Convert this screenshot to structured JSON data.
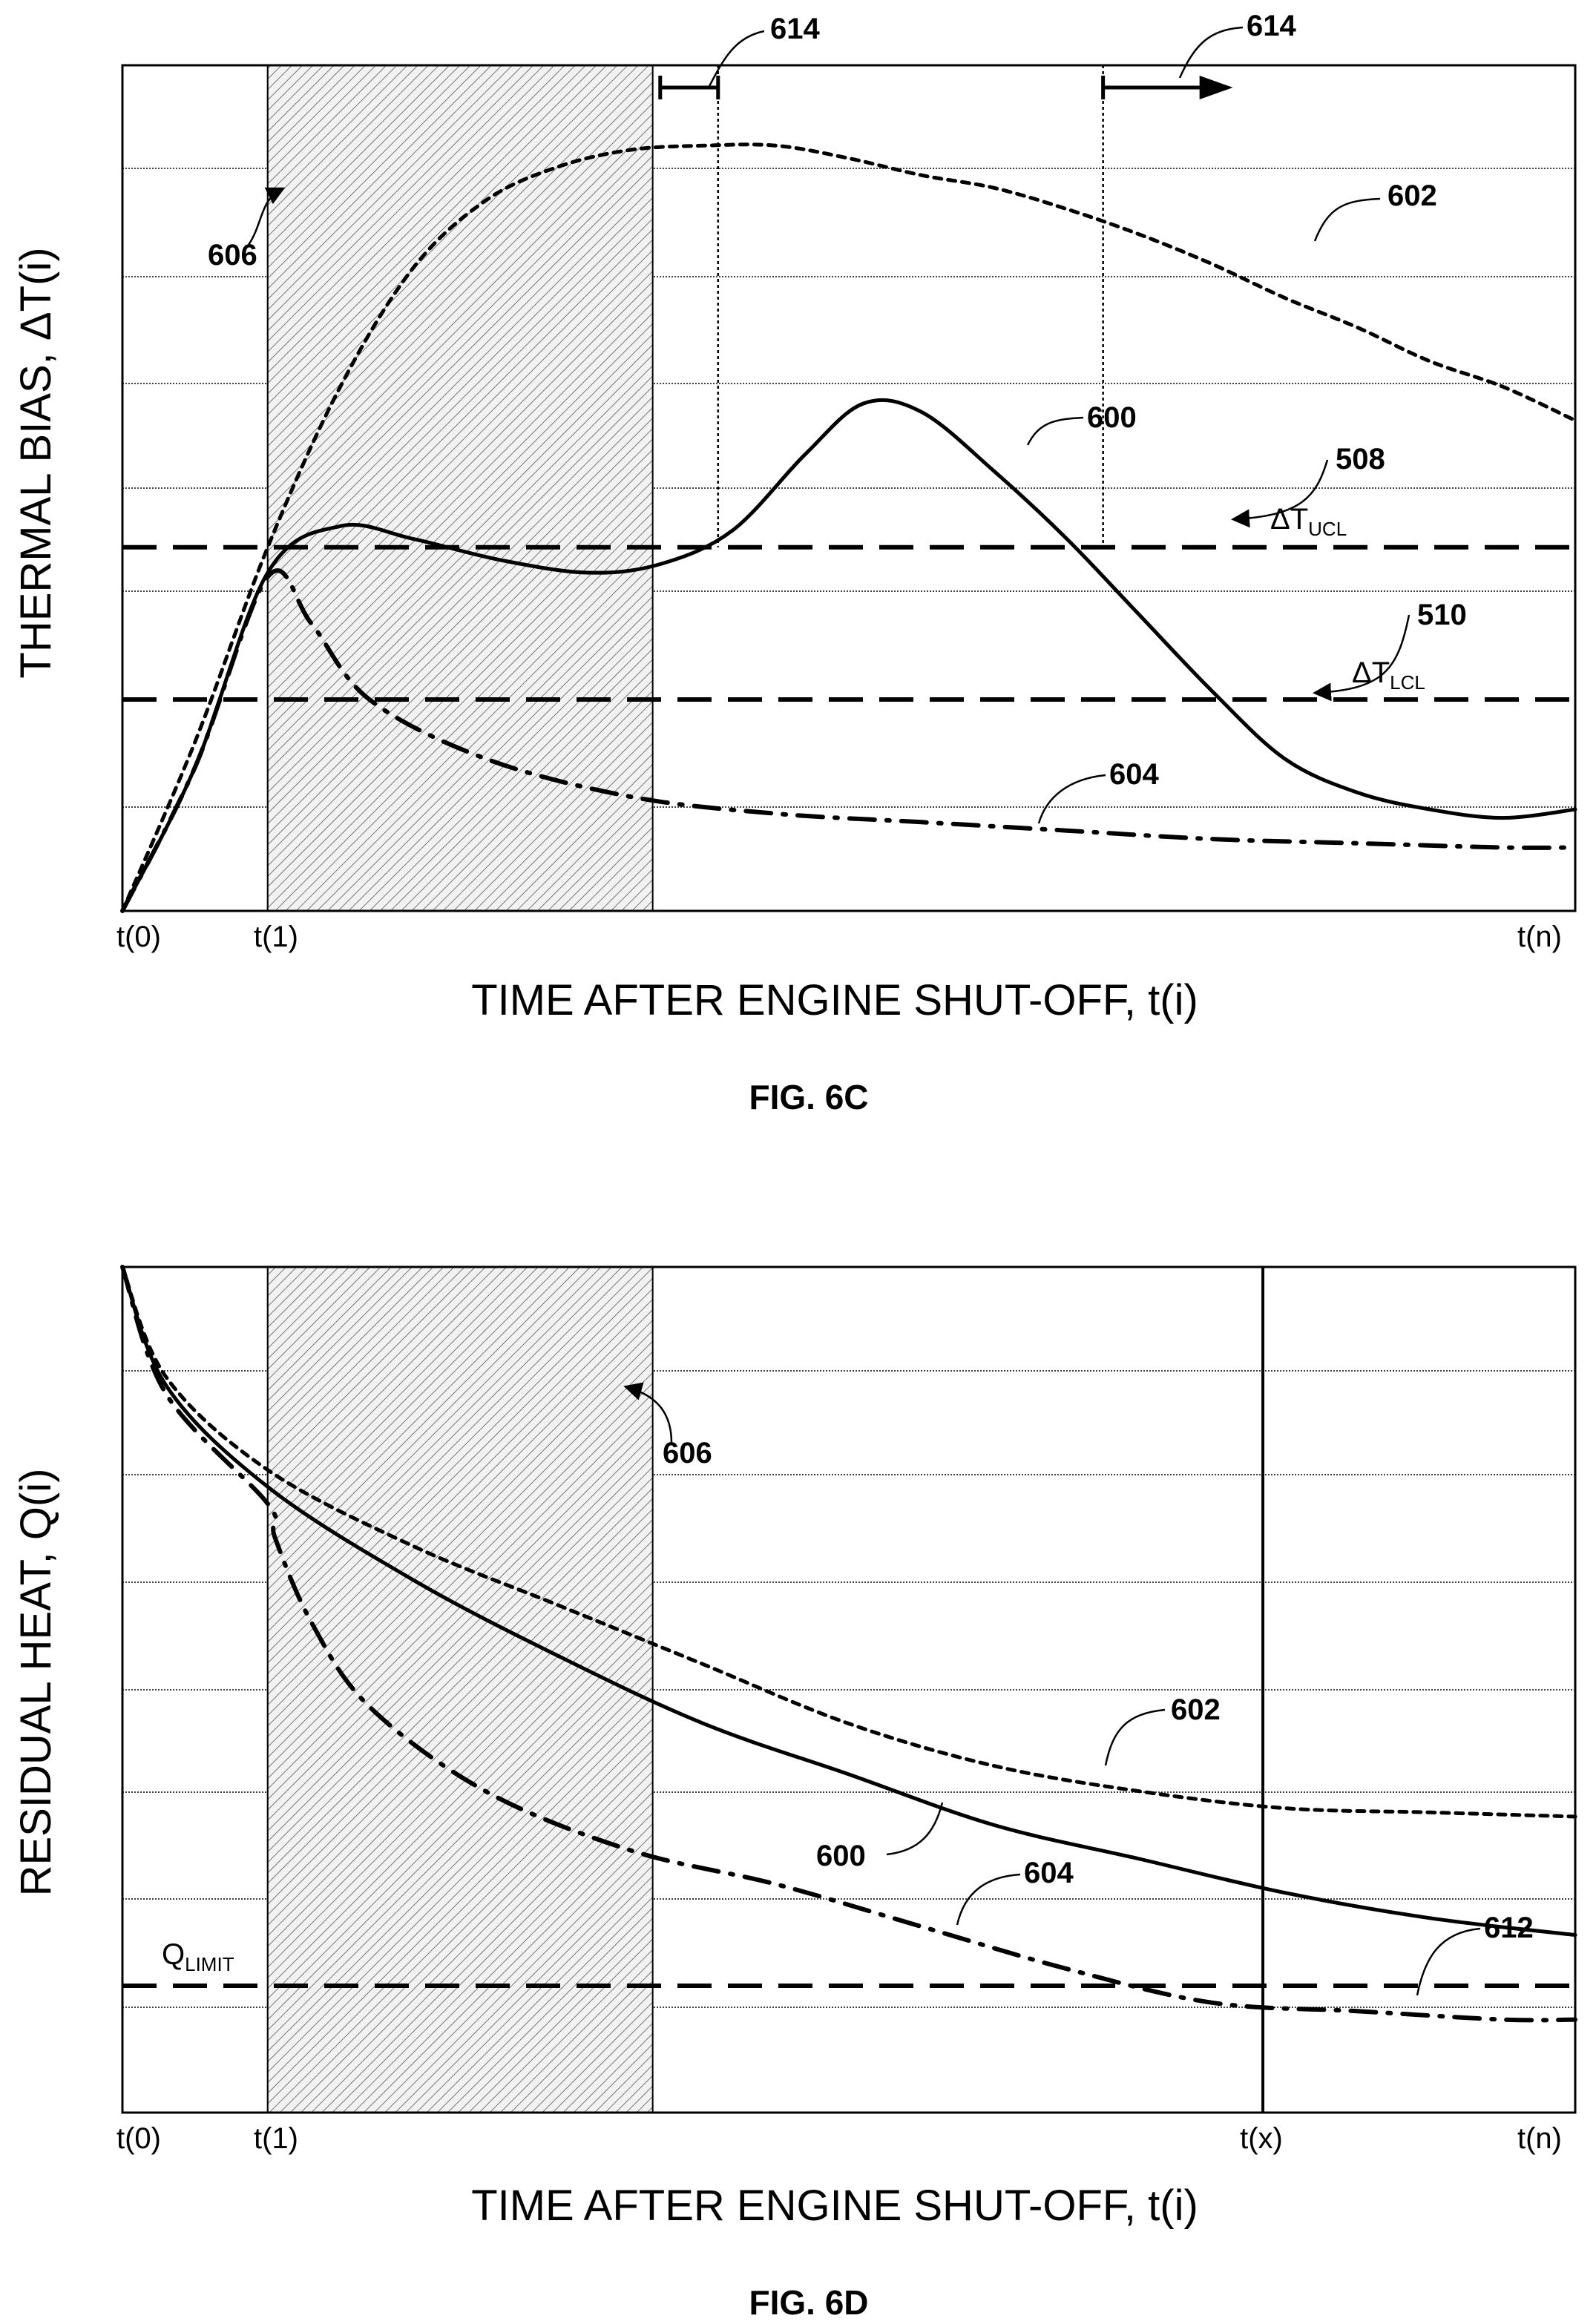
{
  "chart_data": [
    {
      "type": "line",
      "title": "FIG. 6C",
      "xlabel": "TIME AFTER ENGINE SHUT-OFF, t(i)",
      "ylabel": "THERMAL BIAS, ΔT(i)",
      "x_ticks": [
        "t(0)",
        "t(1)",
        "t(n)"
      ],
      "xlim": [
        0,
        1
      ],
      "ylim": [
        0,
        1
      ],
      "grid": true,
      "shaded_region": {
        "ref": "606",
        "from": 0.1,
        "to": 0.365
      },
      "series": [
        {
          "ref": "600",
          "style": "solid",
          "points": [
            [
              0,
              0
            ],
            [
              0.05,
              0.17
            ],
            [
              0.1,
              0.4
            ],
            [
              0.15,
              0.455
            ],
            [
              0.2,
              0.44
            ],
            [
              0.26,
              0.415
            ],
            [
              0.32,
              0.4
            ],
            [
              0.37,
              0.41
            ],
            [
              0.42,
              0.45
            ],
            [
              0.47,
              0.54
            ],
            [
              0.51,
              0.6
            ],
            [
              0.55,
              0.59
            ],
            [
              0.6,
              0.52
            ],
            [
              0.65,
              0.44
            ],
            [
              0.7,
              0.35
            ],
            [
              0.75,
              0.26
            ],
            [
              0.8,
              0.18
            ],
            [
              0.85,
              0.14
            ],
            [
              0.9,
              0.12
            ],
            [
              0.95,
              0.11
            ],
            [
              1,
              0.12
            ]
          ]
        },
        {
          "ref": "602",
          "style": "dotted",
          "points": [
            [
              0,
              0
            ],
            [
              0.05,
              0.2
            ],
            [
              0.1,
              0.43
            ],
            [
              0.15,
              0.62
            ],
            [
              0.2,
              0.76
            ],
            [
              0.25,
              0.84
            ],
            [
              0.3,
              0.88
            ],
            [
              0.35,
              0.9
            ],
            [
              0.4,
              0.905
            ],
            [
              0.45,
              0.905
            ],
            [
              0.5,
              0.89
            ],
            [
              0.55,
              0.87
            ],
            [
              0.6,
              0.855
            ],
            [
              0.65,
              0.83
            ],
            [
              0.7,
              0.8
            ],
            [
              0.75,
              0.765
            ],
            [
              0.8,
              0.725
            ],
            [
              0.85,
              0.69
            ],
            [
              0.9,
              0.65
            ],
            [
              0.95,
              0.62
            ],
            [
              1,
              0.58
            ]
          ]
        },
        {
          "ref": "604",
          "style": "dash-dot",
          "points": [
            [
              0,
              0
            ],
            [
              0.05,
              0.17
            ],
            [
              0.1,
              0.395
            ],
            [
              0.13,
              0.34
            ],
            [
              0.17,
              0.25
            ],
            [
              0.25,
              0.18
            ],
            [
              0.35,
              0.135
            ],
            [
              0.45,
              0.115
            ],
            [
              0.55,
              0.105
            ],
            [
              0.65,
              0.095
            ],
            [
              0.75,
              0.085
            ],
            [
              0.85,
              0.08
            ],
            [
              0.95,
              0.075
            ],
            [
              1,
              0.075
            ]
          ]
        }
      ],
      "hlines": [
        {
          "ref": "508",
          "label": "ΔT",
          "label_sub": "UCL",
          "y": 0.43
        },
        {
          "ref": "510",
          "label": "ΔT",
          "label_sub": "LCL",
          "y": 0.25
        }
      ],
      "vmarkers": [
        {
          "ref": "614",
          "x": 0.41,
          "arrow": "bar"
        },
        {
          "ref": "614",
          "x": 0.675,
          "arrow": "right"
        }
      ]
    },
    {
      "type": "line",
      "title": "FIG. 6D",
      "xlabel": "TIME AFTER ENGINE SHUT-OFF, t(i)",
      "ylabel": "RESIDUAL HEAT, Q(i)",
      "x_ticks": [
        "t(0)",
        "t(1)",
        "t(x)",
        "t(n)"
      ],
      "xlim": [
        0,
        1
      ],
      "ylim": [
        0,
        1
      ],
      "grid": true,
      "shaded_region": {
        "ref": "606",
        "from": 0.1,
        "to": 0.365
      },
      "series": [
        {
          "ref": "600",
          "style": "solid",
          "points": [
            [
              0,
              1
            ],
            [
              0.03,
              0.86
            ],
            [
              0.1,
              0.74
            ],
            [
              0.2,
              0.63
            ],
            [
              0.3,
              0.54
            ],
            [
              0.4,
              0.46
            ],
            [
              0.5,
              0.4
            ],
            [
              0.6,
              0.34
            ],
            [
              0.7,
              0.3
            ],
            [
              0.8,
              0.26
            ],
            [
              0.9,
              0.23
            ],
            [
              1,
              0.21
            ]
          ]
        },
        {
          "ref": "602",
          "style": "dotted",
          "points": [
            [
              0,
              1
            ],
            [
              0.03,
              0.87
            ],
            [
              0.1,
              0.76
            ],
            [
              0.2,
              0.67
            ],
            [
              0.3,
              0.6
            ],
            [
              0.4,
              0.53
            ],
            [
              0.5,
              0.46
            ],
            [
              0.6,
              0.41
            ],
            [
              0.7,
              0.38
            ],
            [
              0.8,
              0.36
            ],
            [
              0.9,
              0.355
            ],
            [
              1,
              0.35
            ]
          ]
        },
        {
          "ref": "604",
          "style": "dash-dot",
          "points": [
            [
              0,
              1
            ],
            [
              0.03,
              0.85
            ],
            [
              0.1,
              0.72
            ],
            [
              0.105,
              0.68
            ],
            [
              0.13,
              0.58
            ],
            [
              0.17,
              0.48
            ],
            [
              0.25,
              0.38
            ],
            [
              0.35,
              0.31
            ],
            [
              0.45,
              0.27
            ],
            [
              0.55,
              0.22
            ],
            [
              0.65,
              0.17
            ],
            [
              0.75,
              0.13
            ],
            [
              0.85,
              0.12
            ],
            [
              0.95,
              0.11
            ],
            [
              1,
              0.11
            ]
          ]
        }
      ],
      "hlines": [
        {
          "ref": "612",
          "label": "Q",
          "label_sub": "LIMIT",
          "y": 0.15
        }
      ],
      "vlines": [
        {
          "label": "t(x)",
          "x": 0.785
        }
      ],
      "ref_labels": [
        "606",
        "602",
        "600",
        "604",
        "612"
      ]
    }
  ]
}
